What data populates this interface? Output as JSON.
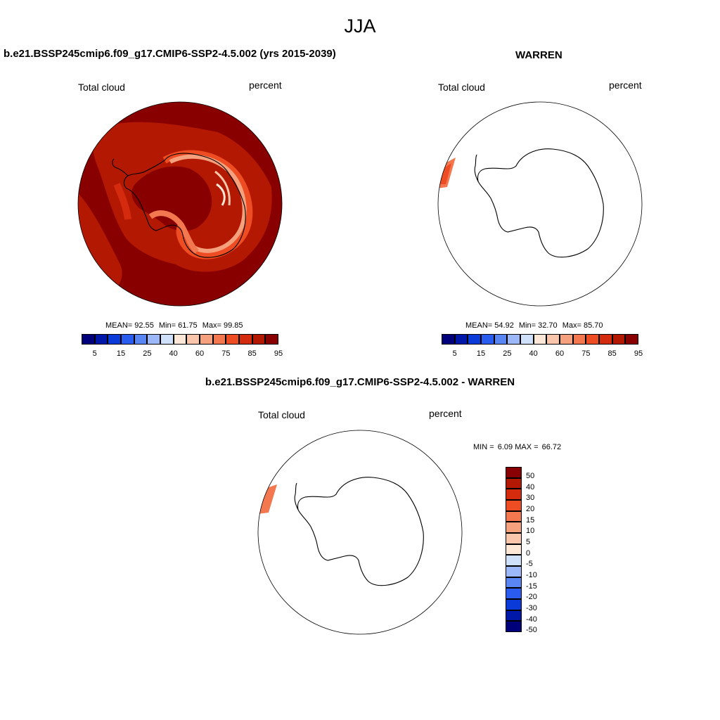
{
  "figure": {
    "season": "JJA"
  },
  "panels": [
    {
      "title": "b.e21.BSSP245cmip6.f09_g17.CMIP6-SSP2-4.5.002 (yrs 2015-2039)",
      "variable": "Total cloud",
      "units": "percent",
      "stats": {
        "mean_label": "MEAN=",
        "mean": "92.55",
        "min_label": "Min=",
        "min": "61.75",
        "max_label": "Max=",
        "max": "99.85"
      },
      "field": "filled"
    },
    {
      "title": "WARREN",
      "variable": "Total cloud",
      "units": "percent",
      "stats": {
        "mean_label": "MEAN=",
        "mean": "54.92",
        "min_label": "Min=",
        "min": "32.70",
        "max_label": "Max=",
        "max": "85.70"
      },
      "field": "sparse"
    },
    {
      "title": "b.e21.BSSP245cmip6.f09_g17.CMIP6-SSP2-4.5.002 - WARREN",
      "variable": "Total cloud",
      "units": "percent",
      "stats": {
        "min_label": "MIN =",
        "min": "6.09",
        "max_label": "MAX =",
        "max": "66.72"
      },
      "field": "sparse"
    }
  ],
  "colorbar_abs": {
    "colors": [
      "#00007a",
      "#0018a8",
      "#0a3ad8",
      "#2a5cf0",
      "#5a86f4",
      "#9cb8f8",
      "#cfe0fb",
      "#fde8d8",
      "#f9c6ab",
      "#f5a17e",
      "#f3784f",
      "#ee4c22",
      "#d42a0e",
      "#b31802",
      "#880000"
    ],
    "labels": [
      "5",
      "15",
      "25",
      "40",
      "60",
      "75",
      "85",
      "95"
    ]
  },
  "colorbar_diff": {
    "colors": [
      "#880000",
      "#b31802",
      "#d42a0e",
      "#ee4c22",
      "#f3784f",
      "#f5a17e",
      "#f9c6ab",
      "#fde8d8",
      "#cfe0fb",
      "#9cb8f8",
      "#5a86f4",
      "#2a5cf0",
      "#0a3ad8",
      "#0018a8",
      "#00007a"
    ],
    "labels": [
      "50",
      "40",
      "30",
      "20",
      "15",
      "10",
      "5",
      "0",
      "-5",
      "-10",
      "-15",
      "-20",
      "-30",
      "-40",
      "-50"
    ]
  }
}
